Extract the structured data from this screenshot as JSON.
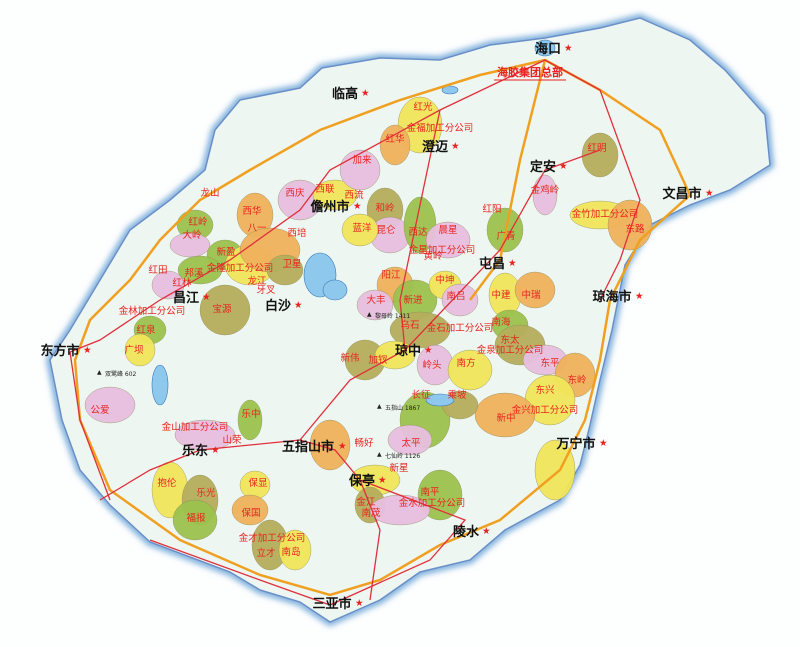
{
  "map": {
    "region": "Hainan",
    "headquarters": "海胶集团总部",
    "cities": [
      "海口",
      "临高",
      "澄迈",
      "定安",
      "文昌市",
      "儋州市",
      "屯昌",
      "琼海市",
      "昌江",
      "白沙",
      "琼中",
      "东方市",
      "万宁市",
      "五指山市",
      "乐东",
      "保亭",
      "陵水",
      "三亚市"
    ],
    "farms": [
      "红光",
      "金福加工分公司",
      "红华",
      "红明",
      "金鸡岭",
      "金竹加工分公司",
      "东路",
      "红阳",
      "广青",
      "龙山",
      "红岭",
      "西庆",
      "西华",
      "西联",
      "西流",
      "八一",
      "西培",
      "加来",
      "和岭",
      "昆仑",
      "西达",
      "晨星",
      "金星加工分公司",
      "蓝洋",
      "大岭",
      "新盈",
      "邦溪",
      "金隆加工分公司",
      "龙江",
      "卫星",
      "红田",
      "红林",
      "金林加工分公司",
      "宝源",
      "红泉",
      "广坝",
      "公爱",
      "金山加工分公司",
      "山荣",
      "乐中",
      "牙叉",
      "黄岭",
      "阳江",
      "中坤",
      "大丰",
      "新进",
      "南吕",
      "中建",
      "中瑞",
      "南海",
      "乌石",
      "金石加工分公司",
      "东太",
      "金泉加工分公司",
      "东平",
      "新伟",
      "加钗",
      "岭头",
      "南方",
      "东岭",
      "东兴",
      "金兴加工分公司",
      "长征",
      "乘坡",
      "新中",
      "太平",
      "畅好",
      "新星",
      "南平",
      "金水加工分公司",
      "金江",
      "南茂",
      "抱伦",
      "乐光",
      "福报",
      "保显",
      "保国",
      "金才加工分公司",
      "立才",
      "南岛"
    ],
    "peaks": [
      "黎母岭 1411",
      "五指山 1867",
      "七仙岭 1126",
      "双鹭峰 602"
    ],
    "colors": {
      "sea_edge": "#7fb0dc",
      "land": "#eef6f2",
      "yellow": "#f2e65a",
      "orange": "#f0b25c",
      "green": "#9cc24e",
      "olive": "#b6ae5c",
      "pink": "#e8bfe0",
      "water": "#8ec8ec",
      "highway": "#f0a020",
      "road": "#e0303a",
      "label_red": "#e8231f"
    }
  }
}
